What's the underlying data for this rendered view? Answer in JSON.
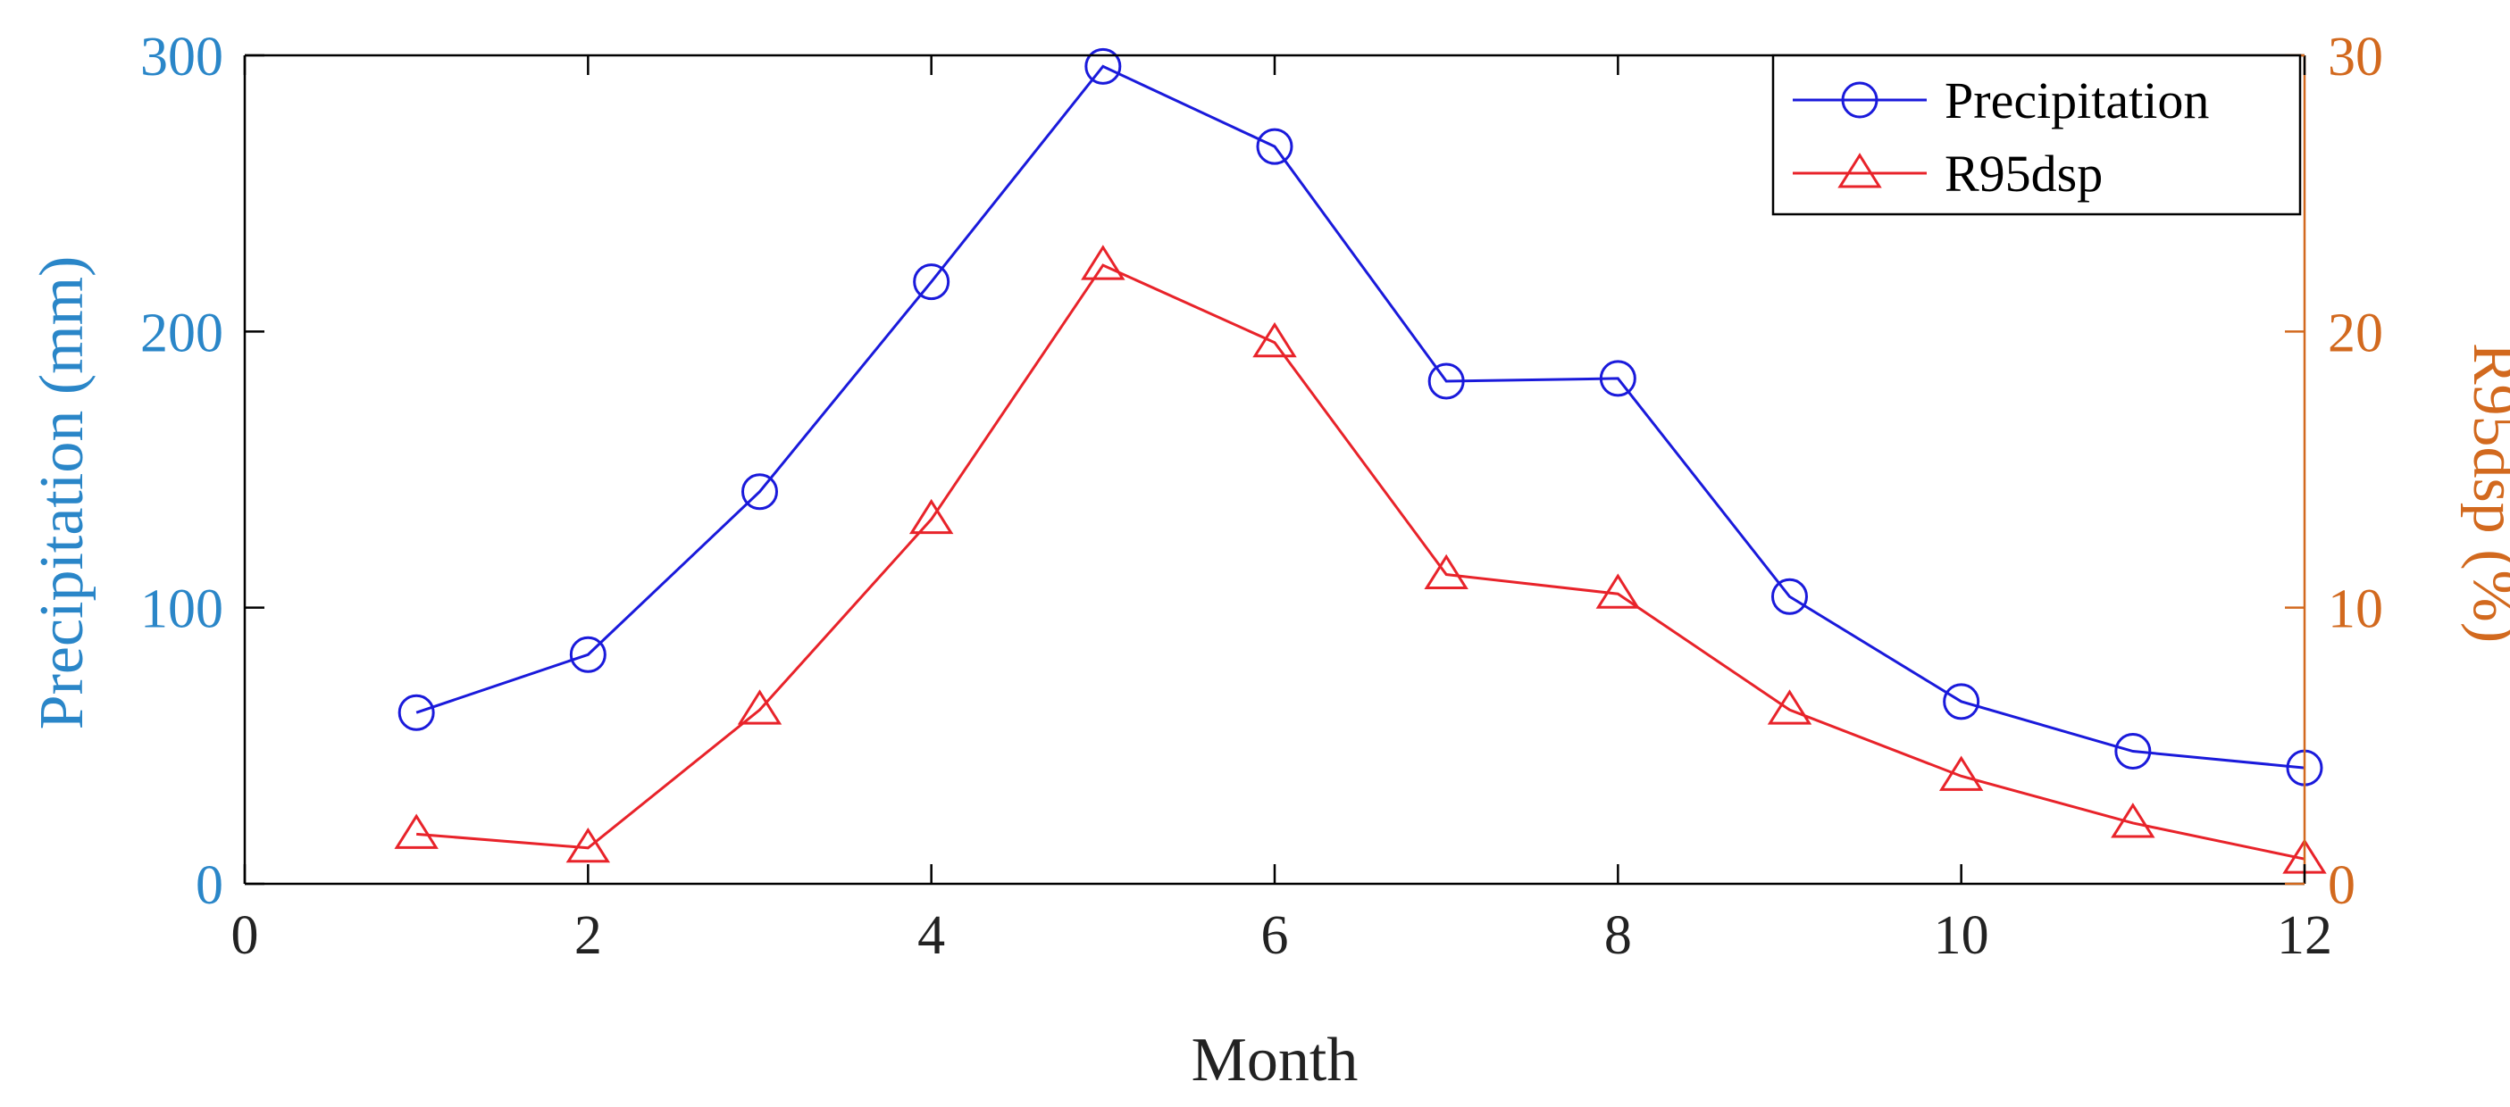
{
  "chart_data": {
    "type": "line",
    "xlabel": "Month",
    "ylabel_left": "Precipitation (mm)",
    "ylabel_right": "R95dsp (%)",
    "xlim": [
      0,
      12
    ],
    "ylim_left": [
      0,
      300
    ],
    "ylim_right": [
      0,
      30
    ],
    "x_ticks": [
      "0",
      "2",
      "4",
      "6",
      "8",
      "10",
      "12"
    ],
    "y_ticks_left": [
      "0",
      "100",
      "200",
      "300"
    ],
    "y_ticks_right": [
      "0",
      "10",
      "20",
      "30"
    ],
    "x": [
      1,
      2,
      3,
      4,
      5,
      6,
      7,
      8,
      9,
      10,
      11,
      12
    ],
    "series": [
      {
        "name": "Precipitation",
        "axis": "left",
        "marker": "circle",
        "color": "#1a1adb",
        "values": [
          62,
          83,
          142,
          218,
          296,
          267,
          182,
          183,
          104,
          66,
          48,
          42
        ]
      },
      {
        "name": "R95dsp",
        "axis": "right",
        "marker": "triangle",
        "color": "#e8232a",
        "values": [
          1.8,
          1.3,
          6.3,
          13.2,
          22.4,
          19.6,
          11.2,
          10.5,
          6.3,
          3.9,
          2.2,
          0.9
        ]
      }
    ],
    "legend_position": "top-right",
    "grid": false
  },
  "colors": {
    "left_axis": "#2a86c8",
    "right_axis": "#d2691e",
    "frame": "#000000"
  }
}
